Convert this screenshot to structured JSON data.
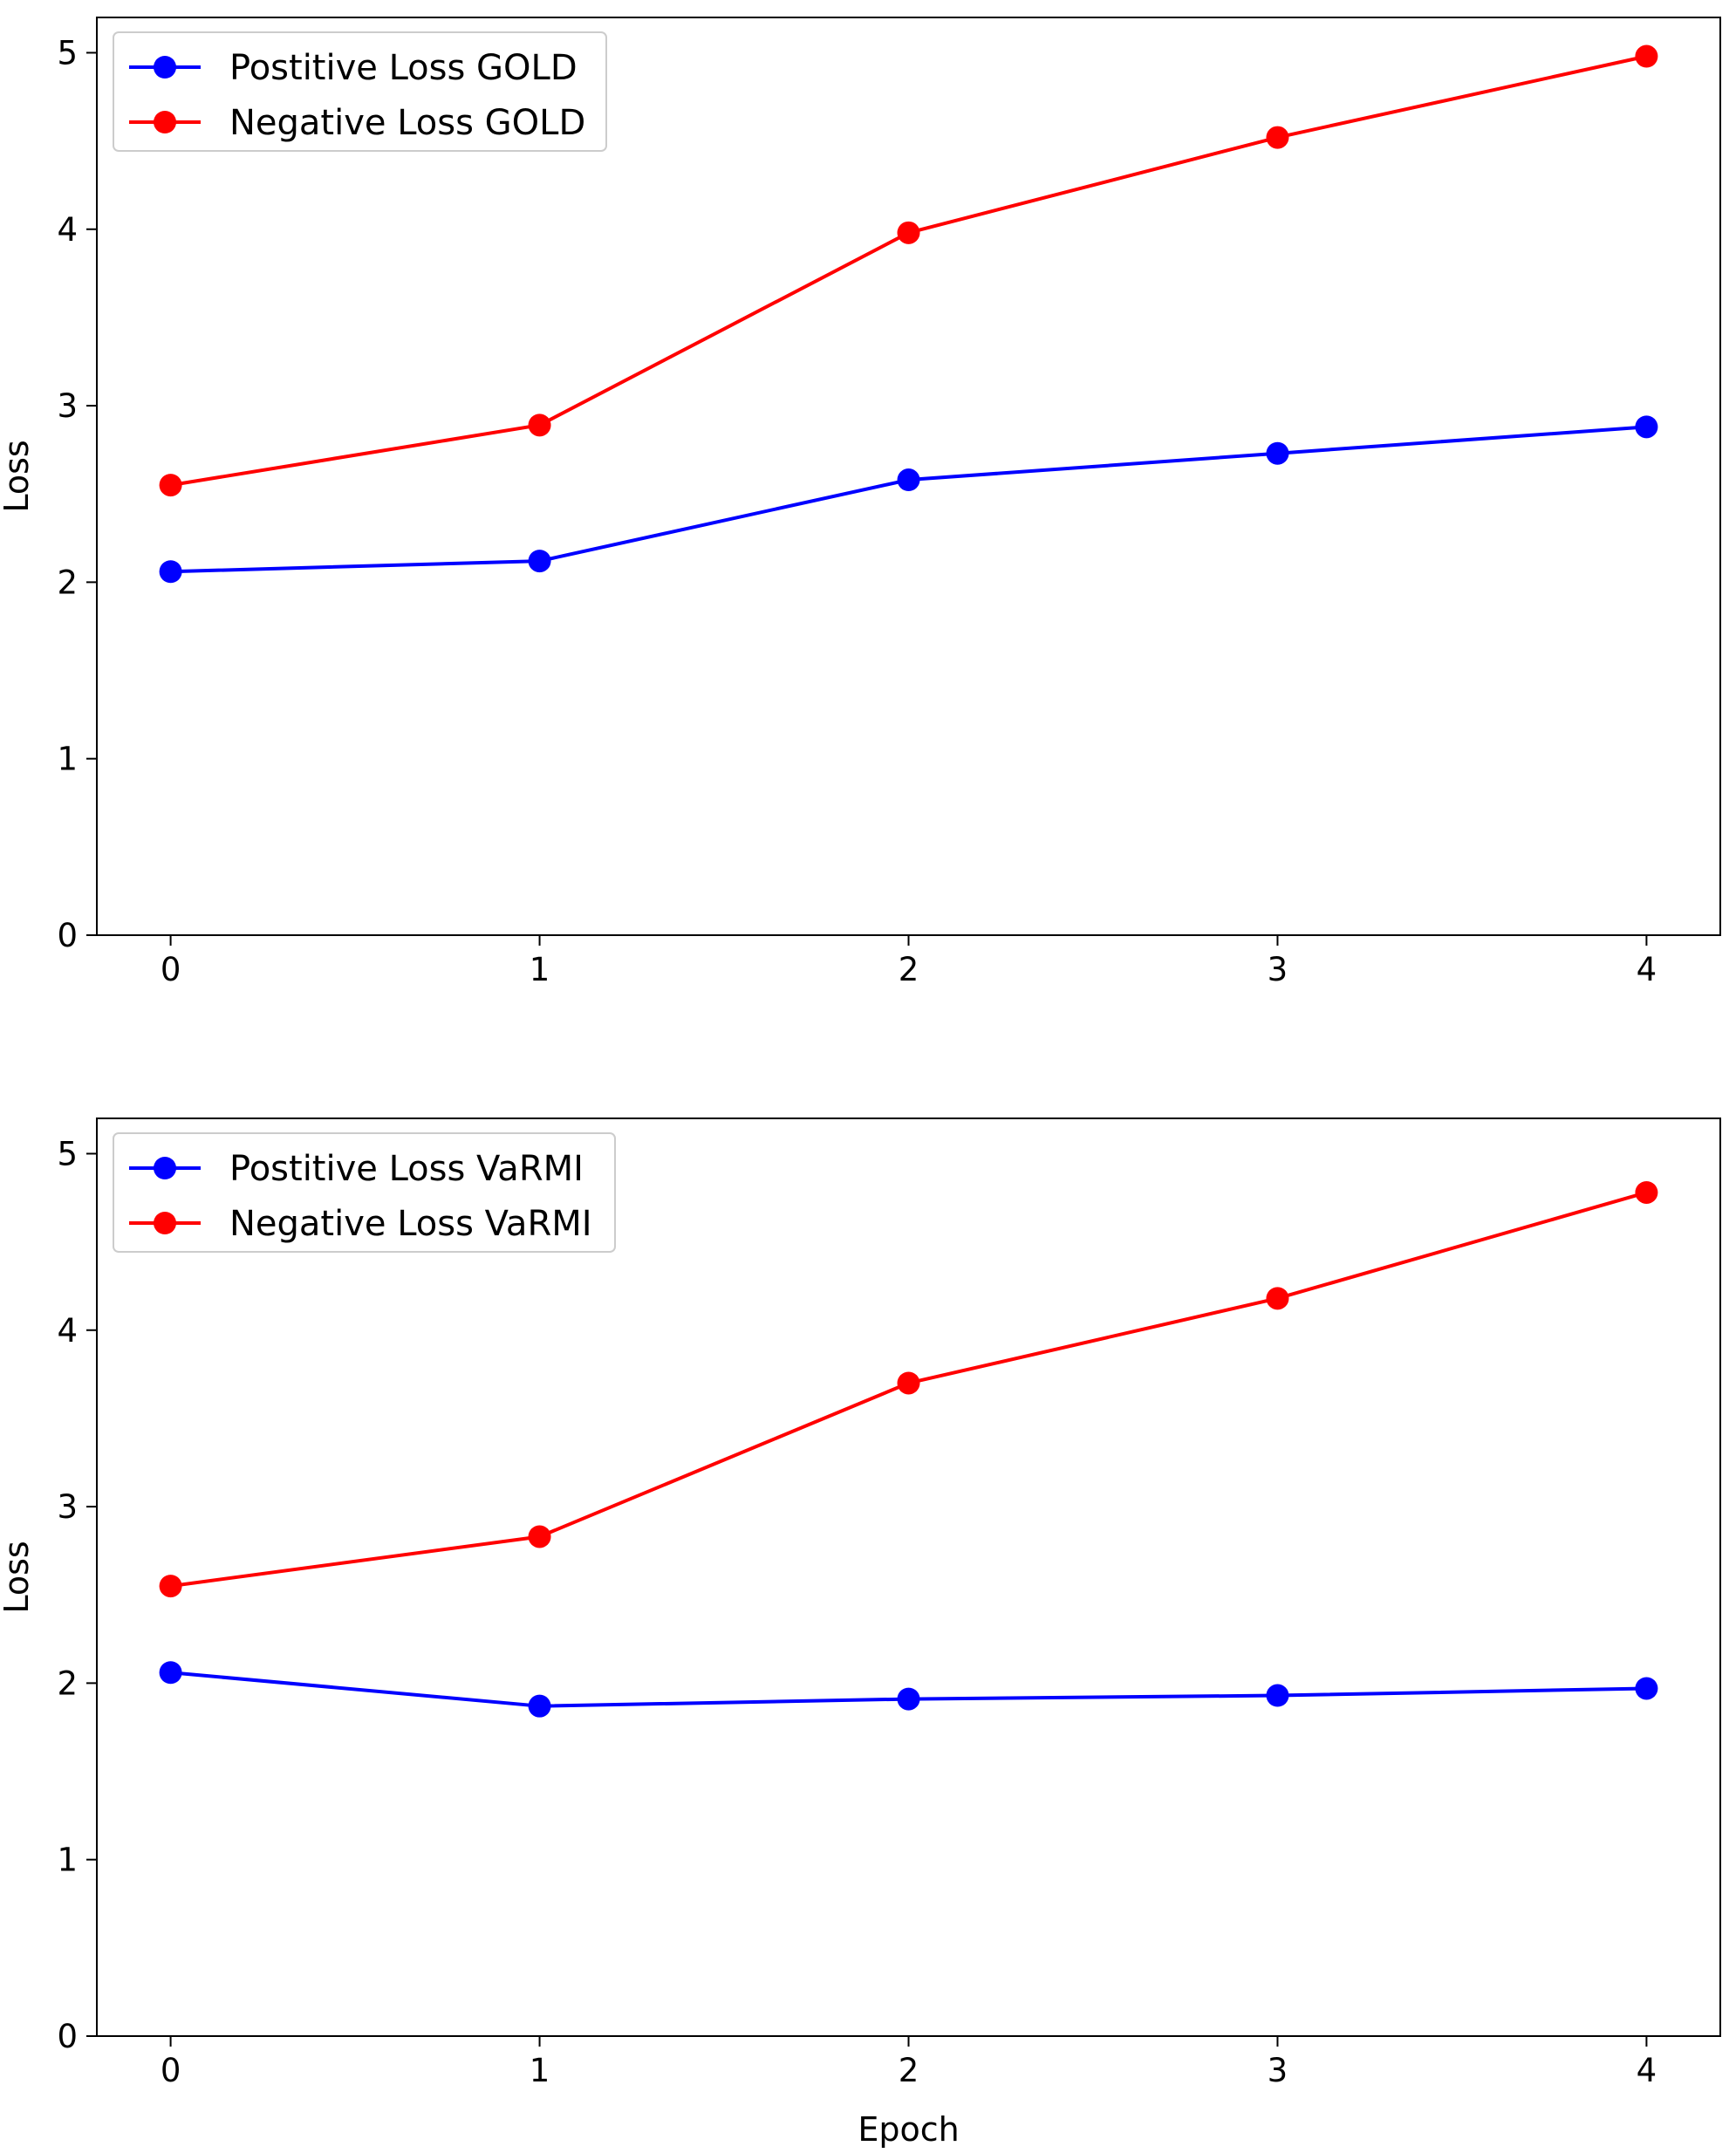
{
  "chart_data": [
    {
      "type": "line",
      "title": "",
      "xlabel": "",
      "ylabel": "Loss",
      "x": [
        0,
        1,
        2,
        3,
        4
      ],
      "x_ticks": [
        "0",
        "1",
        "2",
        "3",
        "4"
      ],
      "y_ticks": [
        "0",
        "1",
        "2",
        "3",
        "4",
        "5"
      ],
      "xlim": [
        -0.2,
        4.2
      ],
      "ylim": [
        0,
        5.2
      ],
      "legend_position": "top-left",
      "grid": false,
      "series": [
        {
          "name": "Postitive Loss GOLD",
          "color": "#0000ff",
          "values": [
            2.06,
            2.12,
            2.58,
            2.73,
            2.88
          ]
        },
        {
          "name": "Negative Loss GOLD",
          "color": "#ff0000",
          "values": [
            2.55,
            2.89,
            3.98,
            4.52,
            4.98
          ]
        }
      ]
    },
    {
      "type": "line",
      "title": "",
      "xlabel": "Epoch",
      "ylabel": "Loss",
      "x": [
        0,
        1,
        2,
        3,
        4
      ],
      "x_ticks": [
        "0",
        "1",
        "2",
        "3",
        "4"
      ],
      "y_ticks": [
        "0",
        "1",
        "2",
        "3",
        "4",
        "5"
      ],
      "xlim": [
        -0.2,
        4.2
      ],
      "ylim": [
        0,
        5.2
      ],
      "legend_position": "top-left",
      "grid": false,
      "series": [
        {
          "name": "Postitive Loss VaRMI",
          "color": "#0000ff",
          "values": [
            2.06,
            1.87,
            1.91,
            1.93,
            1.97
          ]
        },
        {
          "name": "Negative Loss VaRMI",
          "color": "#ff0000",
          "values": [
            2.55,
            2.83,
            3.7,
            4.18,
            4.78
          ]
        }
      ]
    }
  ]
}
